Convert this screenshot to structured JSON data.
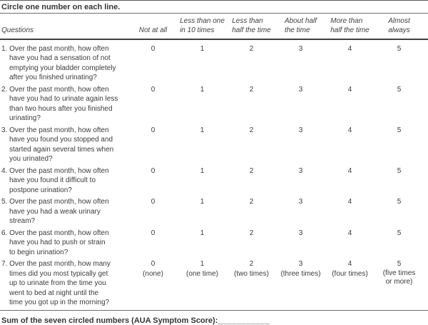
{
  "title": "Circle one number on each line.",
  "table": {
    "question_header": "Questions",
    "column_headers": [
      "Not at all",
      "Less than one\nin 10 times",
      "Less than\nhalf the time",
      "About half\nthe time",
      "More than\nhalf the time",
      "Almost\nalways"
    ],
    "rows": [
      {
        "question": "1. Over the past month, how often\nhave you had a sensation of not\nemptying your bladder completely\nafter you finished urinating?",
        "options": [
          "0",
          "1",
          "2",
          "3",
          "4",
          "5"
        ]
      },
      {
        "question": "2. Over the past month, how often\nhave you had to urinate again less\nthan two hours after you finished\nurinating?",
        "options": [
          "0",
          "1",
          "2",
          "3",
          "4",
          "5"
        ]
      },
      {
        "question": "3. Over the past month, how often\nhave you found you stopped and\nstarted again several times when\nyou urinated?",
        "options": [
          "0",
          "1",
          "2",
          "3",
          "4",
          "5"
        ]
      },
      {
        "question": "4. Over the past month, how often\nhave you found it difficult to\npostpone urination?",
        "options": [
          "0",
          "1",
          "2",
          "3",
          "4",
          "5"
        ]
      },
      {
        "question": "5. Over the past month, how often\nhave you had a weak urinary\nstream?",
        "options": [
          "0",
          "1",
          "2",
          "3",
          "4",
          "5"
        ]
      },
      {
        "question": "6. Over the past month, how often\nhave you had to push or strain\nto begin urination?",
        "options": [
          "0",
          "1",
          "2",
          "3",
          "4",
          "5"
        ]
      },
      {
        "question": "7. Over the past month, how many\ntimes did you most typically get\nup to urinate from the time you\nwent to bed at night until the\ntime you got up in the morning?",
        "options": [
          "0",
          "1",
          "2",
          "3",
          "4",
          "5"
        ],
        "option_labels": [
          "(none)",
          "(one time)",
          "(two times)",
          "(three times)",
          "(four times)",
          "(five times\nor more)"
        ]
      }
    ]
  },
  "footer": {
    "sum_label": "Sum of the seven circled numbers (AUA Symptom Score):",
    "blank": "___________"
  },
  "colors": {
    "text": "#3b3b3b",
    "rule_thin": "#6e6e6e",
    "rule_thick": "#3f3f3f"
  }
}
